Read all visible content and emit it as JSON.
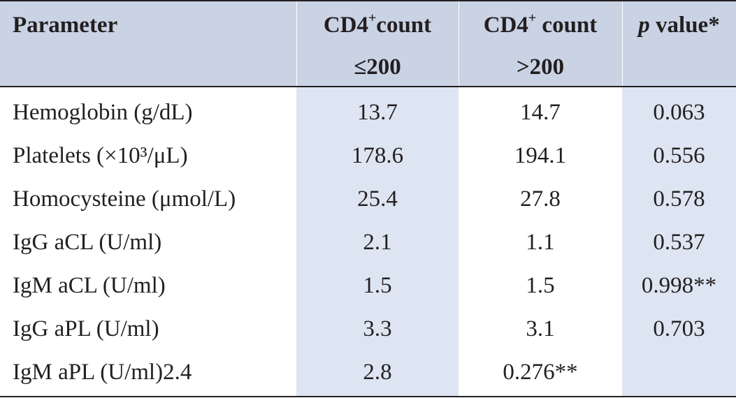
{
  "header": {
    "parameter": "Parameter",
    "col2_line1_a": "CD4",
    "col2_line1_sup": "+",
    "col2_line1_b": "count",
    "col2_line2": "≤200",
    "col3_line1_a": "CD4",
    "col3_line1_sup": "+",
    "col3_line1_b": " count",
    "col3_line2": ">200",
    "col4_italic": "p",
    "col4_rest": " value*"
  },
  "rows": [
    {
      "parameter": "Hemoglobin (g/dL)",
      "le200": "13.7",
      "gt200": "14.7",
      "p": "0.063"
    },
    {
      "parameter": "Platelets (×10³/μL)",
      "le200": "178.6",
      "gt200": "194.1",
      "p": "0.556"
    },
    {
      "parameter": "Homocysteine (μmol/L)",
      "le200": "25.4",
      "gt200": "27.8",
      "p": "0.578"
    },
    {
      "parameter": "IgG aCL (U/ml)",
      "le200": "2.1",
      "gt200": "1.1",
      "p": "0.537"
    },
    {
      "parameter": "IgM aCL (U/ml)",
      "le200": "1.5",
      "gt200": "1.5",
      "p": "0.998**"
    },
    {
      "parameter": "IgG aPL (U/ml)",
      "le200": "3.3",
      "gt200": "3.1",
      "p": "0.703"
    },
    {
      "parameter": "IgM aPL (U/ml)2.4",
      "le200": "2.8",
      "gt200": "0.276**",
      "p": ""
    }
  ]
}
